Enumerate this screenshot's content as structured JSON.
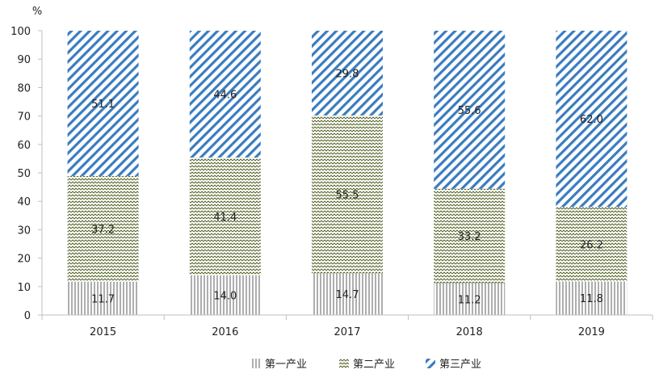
{
  "chart_data": {
    "type": "bar",
    "stacked": true,
    "percent": true,
    "title": "",
    "xlabel": "",
    "ylabel": "%",
    "ylim": [
      0,
      100
    ],
    "yticks": [
      0,
      10,
      20,
      30,
      40,
      50,
      60,
      70,
      80,
      90,
      100
    ],
    "categories": [
      "2015",
      "2016",
      "2017",
      "2018",
      "2019"
    ],
    "series": [
      {
        "name": "第一产业",
        "values": [
          11.7,
          14.0,
          14.7,
          11.2,
          11.8
        ],
        "labels": [
          "11.7",
          "14.0",
          "14.7",
          "11.2",
          "11.8"
        ],
        "pattern": "vertical",
        "color": "#808080"
      },
      {
        "name": "第二产业",
        "values": [
          37.2,
          41.4,
          55.5,
          33.2,
          26.2
        ],
        "labels": [
          "37.2",
          "41.4",
          "55.5",
          "33.2",
          "26.2"
        ],
        "pattern": "zigzag",
        "color": "#4a5a1a"
      },
      {
        "name": "第三产业",
        "values": [
          51.1,
          44.6,
          29.8,
          55.6,
          62.0
        ],
        "labels": [
          "51.1",
          "44.6",
          "29.8",
          "55.6",
          "62.0"
        ],
        "pattern": "diagonal",
        "color": "#2e75b6"
      }
    ],
    "grid": false,
    "legend_position": "bottom"
  }
}
